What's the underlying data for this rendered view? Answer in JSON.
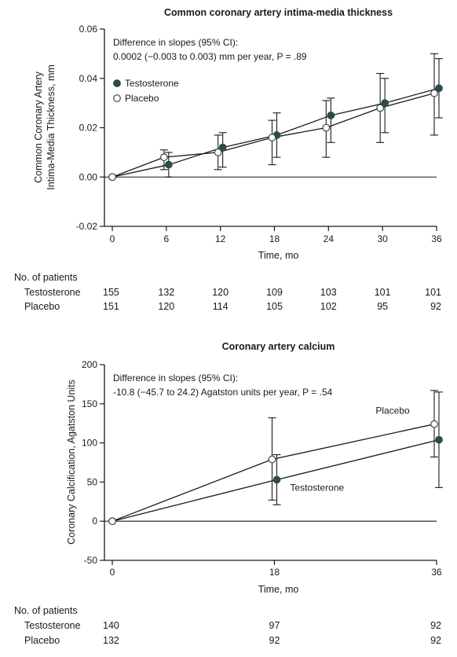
{
  "chart_data": [
    {
      "type": "line",
      "title": "Common coronary artery intima-media thickness",
      "xlabel": "Time, mo",
      "ylabel_lines": [
        "Common Coronary Artery",
        "Intima-Media Thickness, mm"
      ],
      "xlim": [
        0,
        36
      ],
      "ylim": [
        -0.02,
        0.06
      ],
      "x_ticks": [
        0,
        6,
        12,
        18,
        24,
        30,
        36
      ],
      "y_ticks": [
        -0.02,
        0.0,
        0.02,
        0.04,
        0.06
      ],
      "y_tick_labels": [
        "-0.02",
        "0.00",
        "0.02",
        "0.04",
        "0.06"
      ],
      "annotation_lines": [
        "Difference in slopes (95% CI):",
        "0.0002 (−0.003 to 0.003) mm per year, P = .89"
      ],
      "legend": {
        "position": "top-left",
        "entries": [
          "Testosterone",
          "Placebo"
        ]
      },
      "series": [
        {
          "name": "Testosterone",
          "marker": "filled",
          "color": "#2f4a4d",
          "x": [
            0,
            6,
            12,
            18,
            24,
            30,
            36
          ],
          "y": [
            0.0,
            0.005,
            0.012,
            0.017,
            0.025,
            0.03,
            0.036
          ],
          "ci_low": [
            0.0,
            0.0,
            0.004,
            0.008,
            0.014,
            0.018,
            0.024
          ],
          "ci_high": [
            0.0,
            0.01,
            0.018,
            0.026,
            0.032,
            0.04,
            0.048
          ]
        },
        {
          "name": "Placebo",
          "marker": "open",
          "color": "#2f4a4d",
          "x": [
            0,
            6,
            12,
            18,
            24,
            30,
            36
          ],
          "y": [
            0.0,
            0.008,
            0.01,
            0.016,
            0.02,
            0.028,
            0.034
          ],
          "ci_low": [
            0.0,
            0.003,
            0.003,
            0.005,
            0.008,
            0.014,
            0.017
          ],
          "ci_high": [
            0.0,
            0.011,
            0.017,
            0.023,
            0.031,
            0.042,
            0.05
          ]
        }
      ],
      "patients_table": {
        "heading": "No. of patients",
        "rows": [
          {
            "label": "Testosterone",
            "values": [
              "155",
              "132",
              "120",
              "109",
              "103",
              "101",
              "101"
            ]
          },
          {
            "label": "Placebo",
            "values": [
              "151",
              "120",
              "114",
              "105",
              "102",
              "95",
              "92"
            ]
          }
        ]
      }
    },
    {
      "type": "line",
      "title": "Coronary artery calcium",
      "xlabel": "Time, mo",
      "ylabel_lines": [
        "Coronary Calcification, Agatston Units"
      ],
      "xlim": [
        0,
        36
      ],
      "ylim": [
        -50,
        200
      ],
      "x_ticks": [
        0,
        18,
        36
      ],
      "y_ticks": [
        -50,
        0,
        50,
        100,
        150,
        200
      ],
      "y_tick_labels": [
        "-50",
        "0",
        "50",
        "100",
        "150",
        "200"
      ],
      "annotation_lines": [
        "Difference in slopes (95% CI):",
        "-10.8 (−45.7 to 24.2) Agatston units per year, P = .54"
      ],
      "series": [
        {
          "name": "Testosterone",
          "marker": "filled",
          "color": "#2f4a4d",
          "x": [
            0,
            18,
            36
          ],
          "y": [
            0,
            53,
            104
          ],
          "ci_low": [
            0,
            21,
            43
          ],
          "ci_high": [
            0,
            85,
            165
          ]
        },
        {
          "name": "Placebo",
          "marker": "open",
          "color": "#2f4a4d",
          "x": [
            0,
            18,
            36
          ],
          "y": [
            0,
            79,
            124
          ],
          "ci_low": [
            0,
            27,
            82
          ],
          "ci_high": [
            0,
            132,
            167
          ]
        }
      ],
      "patients_table": {
        "heading": "No. of patients",
        "rows": [
          {
            "label": "Testosterone",
            "values": [
              "140",
              "97",
              "92"
            ]
          },
          {
            "label": "Placebo",
            "values": [
              "132",
              "92",
              "92"
            ]
          }
        ]
      }
    }
  ]
}
